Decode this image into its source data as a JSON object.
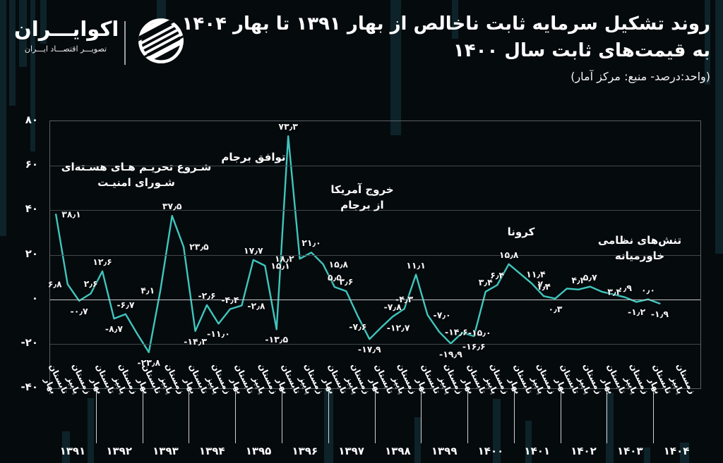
{
  "header": {
    "brand_name": "اکوایـــران",
    "brand_tagline": "تصویـــر اقتصـــاد ایـــران",
    "title_line1": "روند تشکیل سرمایه ثابت ناخالص از بهار ۱۳۹۱ تا بهار ۱۴۰۴",
    "title_line2": "به قیمت‌های ثابت سال ۱۴۰۰",
    "subtitle": "(واحد:درصد- منبع: مرکز آمار)"
  },
  "chart_data": {
    "type": "line",
    "title": "روند تشکیل سرمایه ثابت ناخالص از بهار ۱۳۹۱ تا بهار ۱۴۰۴ به قیمت‌های ثابت سال ۱۴۰۰",
    "unit": "درصد",
    "source": "مرکز آمار",
    "line_color": "#3fc6bd",
    "grid": "horizontal",
    "ylim": [
      -40,
      80
    ],
    "yticks": [
      {
        "v": 80,
        "label": "۸۰"
      },
      {
        "v": 60,
        "label": "۶۰"
      },
      {
        "v": 40,
        "label": "۴۰"
      },
      {
        "v": 20,
        "label": "۲۰"
      },
      {
        "v": 0,
        "label": "۰"
      },
      {
        "v": -20,
        "label": "-۲۰"
      },
      {
        "v": -40,
        "label": "-۴۰"
      }
    ],
    "seasons": [
      "بهار",
      "تابستان",
      "پاییز",
      "زمستان"
    ],
    "years": [
      "۱۳۹۱",
      "۱۳۹۲",
      "۱۳۹۳",
      "۱۳۹۴",
      "۱۳۹۵",
      "۱۳۹۶",
      "۱۳۹۷",
      "۱۳۹۸",
      "۱۳۹۹",
      "۱۴۰۰",
      "۱۴۰۱",
      "۱۴۰۲",
      "۱۴۰۳",
      "۱۴۰۴"
    ],
    "points": [
      {
        "v": 38.1,
        "label": "۳۸٫۱",
        "pos": "r"
      },
      {
        "v": 6.8,
        "label": "۶٫۸",
        "pos": "l"
      },
      {
        "v": -0.7,
        "label": "-۰٫۷",
        "pos": "b"
      },
      {
        "v": 2.6,
        "label": "۲٫۶",
        "pos": "a"
      },
      {
        "v": 12.6,
        "label": "۱۲٫۶",
        "pos": "a"
      },
      {
        "v": -8.7,
        "label": "-۸٫۷",
        "pos": "b"
      },
      {
        "v": -6.7,
        "label": "-۶٫۷",
        "pos": "a"
      },
      {
        "v": -15.5,
        "label": "",
        "pos": ""
      },
      {
        "v": -23.8,
        "label": "-۲۳٫۸",
        "pos": "b"
      },
      {
        "v": 4.1,
        "label": "۴٫۱",
        "pos": "l"
      },
      {
        "v": 37.5,
        "label": "۳۷٫۵",
        "pos": "a"
      },
      {
        "v": 23.5,
        "label": "۲۳٫۵",
        "pos": "r"
      },
      {
        "v": -14.3,
        "label": "-۱۴٫۳",
        "pos": "b"
      },
      {
        "v": -2.6,
        "label": "-۲٫۶",
        "pos": "a"
      },
      {
        "v": -11.0,
        "label": "-۱۱٫۰",
        "pos": "b"
      },
      {
        "v": -4.4,
        "label": "-۴٫۴",
        "pos": "a"
      },
      {
        "v": -2.8,
        "label": "-۲٫۸",
        "pos": "r"
      },
      {
        "v": 17.7,
        "label": "۱۷٫۷",
        "pos": "a"
      },
      {
        "v": 15.1,
        "label": "۱۵٫۱",
        "pos": "r"
      },
      {
        "v": -13.5,
        "label": "-۱۳٫۵",
        "pos": "b"
      },
      {
        "v": 73.3,
        "label": "۷۳٫۳",
        "pos": "a"
      },
      {
        "v": 18.2,
        "label": "۱۸٫۲",
        "pos": "l"
      },
      {
        "v": 21.0,
        "label": "۲۱٫۰",
        "pos": "a"
      },
      {
        "v": 15.8,
        "label": "۱۵٫۸",
        "pos": "r"
      },
      {
        "v": 5.5,
        "label": "۵٫۵",
        "pos": "a"
      },
      {
        "v": 3.6,
        "label": "۳٫۶",
        "pos": "a"
      },
      {
        "v": -7.6,
        "label": "-۷٫۶",
        "pos": "b"
      },
      {
        "v": -17.9,
        "label": "-۱۷٫۹",
        "pos": "b"
      },
      {
        "v": -12.7,
        "label": "-۱۲٫۷",
        "pos": "r"
      },
      {
        "v": -7.8,
        "label": "-۷٫۸",
        "pos": "a"
      },
      {
        "v": -4.3,
        "label": "-۴٫۳",
        "pos": "a"
      },
      {
        "v": 11.1,
        "label": "۱۱٫۱",
        "pos": "a"
      },
      {
        "v": -7.0,
        "label": "-۷٫۰",
        "pos": "r"
      },
      {
        "v": -14.6,
        "label": "-۱۴٫۶",
        "pos": "r"
      },
      {
        "v": -19.9,
        "label": "-۱۹٫۹",
        "pos": "b"
      },
      {
        "v": -15.0,
        "label": "-۱۵٫۰",
        "pos": "r"
      },
      {
        "v": -16.6,
        "label": "-۱۶٫۶",
        "pos": "b"
      },
      {
        "v": 3.4,
        "label": "۳٫۴",
        "pos": "a"
      },
      {
        "v": 6.4,
        "label": "۶٫۴",
        "pos": "a"
      },
      {
        "v": 15.8,
        "label": "۱۵٫۸",
        "pos": "a"
      },
      {
        "v": 11.4,
        "label": "۱۱٫۴",
        "pos": "r"
      },
      {
        "v": 7.0,
        "label": "۷٫۰",
        "pos": "r"
      },
      {
        "v": 1.4,
        "label": "۱٫۴",
        "pos": "a"
      },
      {
        "v": 0.3,
        "label": "۰٫۳",
        "pos": "b"
      },
      {
        "v": 4.8,
        "label": "",
        "pos": ""
      },
      {
        "v": 4.4,
        "label": "۴٫۴",
        "pos": "a"
      },
      {
        "v": 5.7,
        "label": "۵٫۷",
        "pos": "a"
      },
      {
        "v": 3.4,
        "label": "۳٫۴",
        "pos": "r"
      },
      {
        "v": 2.2,
        "label": "",
        "pos": ""
      },
      {
        "v": 0.9,
        "label": "۰٫۹",
        "pos": "a"
      },
      {
        "v": -1.2,
        "label": "-۱٫۲",
        "pos": "b"
      },
      {
        "v": 0.0,
        "label": "۰٫۰",
        "pos": "a"
      },
      {
        "v": -1.9,
        "label": "-۱٫۹",
        "pos": "b"
      }
    ],
    "annotations": [
      {
        "lines": [
          "شـروع تحریـم هـای هسـته‌ای",
          "شـورای امنیـت"
        ],
        "x": 122,
        "y": 54
      },
      {
        "lines": [
          "توافق برجام"
        ],
        "x": 288,
        "y": 40
      },
      {
        "lines": [
          "خروج آمریکا",
          "از برجام"
        ],
        "x": 442,
        "y": 86
      },
      {
        "lines": [
          "کرونا"
        ],
        "x": 667,
        "y": 146
      },
      {
        "lines": [
          "تنش‌های نظامی",
          "خاورمیانه"
        ],
        "x": 835,
        "y": 158
      }
    ]
  }
}
